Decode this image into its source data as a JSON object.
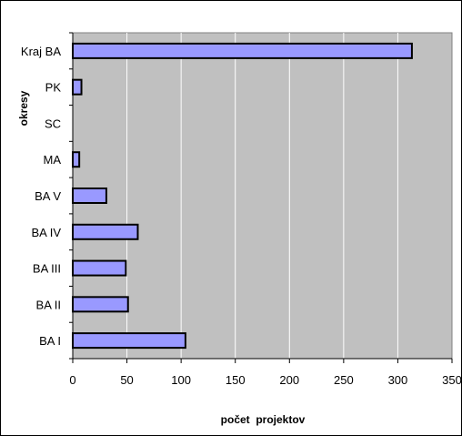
{
  "chart_data": {
    "type": "bar",
    "orientation": "horizontal",
    "categories": [
      "Kraj BA",
      "PK",
      "SC",
      "MA",
      "BA V",
      "BA IV",
      "BA III",
      "BA II",
      "BA I"
    ],
    "values": [
      313,
      8,
      0,
      6,
      31,
      60,
      49,
      51,
      104
    ],
    "xlabel": "počet  projektov",
    "ylabel": "okresy",
    "xlim": [
      0,
      350
    ],
    "xticks": [
      "0",
      "50",
      "100",
      "150",
      "200",
      "250",
      "300",
      "350"
    ],
    "grid": "vertical",
    "legend": "none",
    "colors": {
      "bar_fill": "#9999ff",
      "bar_stroke": "#000000",
      "plot_background": "#c0c0c0",
      "gridline": "#ffffff"
    }
  }
}
